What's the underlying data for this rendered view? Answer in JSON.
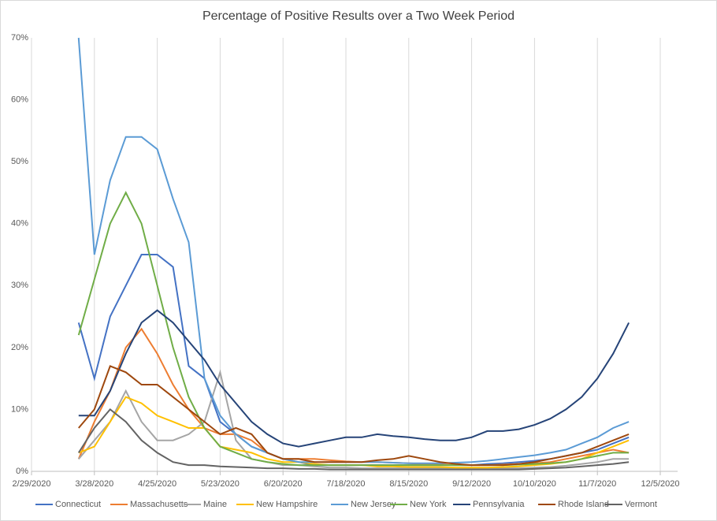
{
  "chart_data": {
    "type": "line",
    "title": "Percentage of Positive Results over a Two Week Period",
    "x": [
      "3/21/2020",
      "3/28/2020",
      "4/4/2020",
      "4/11/2020",
      "4/18/2020",
      "4/25/2020",
      "5/2/2020",
      "5/9/2020",
      "5/16/2020",
      "5/23/2020",
      "5/30/2020",
      "6/6/2020",
      "6/13/2020",
      "6/20/2020",
      "6/27/2020",
      "7/4/2020",
      "7/11/2020",
      "7/18/2020",
      "7/25/2020",
      "8/1/2020",
      "8/8/2020",
      "8/15/2020",
      "8/22/2020",
      "8/29/2020",
      "9/5/2020",
      "9/12/2020",
      "9/19/2020",
      "9/26/2020",
      "10/3/2020",
      "10/10/2020",
      "10/17/2020",
      "10/24/2020",
      "10/31/2020",
      "11/7/2020",
      "11/14/2020",
      "11/21/2020"
    ],
    "xlim": [
      "2/29/2020",
      "12/5/2020"
    ],
    "xticks": [
      "2/29/2020",
      "3/28/2020",
      "4/25/2020",
      "5/23/2020",
      "6/20/2020",
      "7/18/2020",
      "8/15/2020",
      "9/12/2020",
      "10/10/2020",
      "11/7/2020",
      "12/5/2020"
    ],
    "ylim": [
      0,
      70
    ],
    "yticks": [
      {
        "value": 0,
        "label": "0%"
      },
      {
        "value": 10,
        "label": "10%"
      },
      {
        "value": 20,
        "label": "20%"
      },
      {
        "value": 30,
        "label": "30%"
      },
      {
        "value": 40,
        "label": "40%"
      },
      {
        "value": 50,
        "label": "50%"
      },
      {
        "value": 60,
        "label": "60%"
      },
      {
        "value": 70,
        "label": "70%"
      }
    ],
    "xgrid": true,
    "legend": "bottom",
    "series": [
      {
        "name": "Connecticut",
        "color": "#4472c4",
        "values": [
          24,
          15,
          25,
          30,
          35,
          35,
          33,
          17,
          15,
          8,
          6,
          4,
          3,
          2,
          1.5,
          1,
          1,
          1,
          1,
          1,
          1,
          1,
          1,
          1,
          1,
          1,
          1.2,
          1.3,
          1.5,
          1.7,
          2,
          2.5,
          3,
          3.5,
          4.5,
          5.5
        ]
      },
      {
        "name": "Massachusetts",
        "color": "#ed7d31",
        "values": [
          2,
          8,
          13,
          20,
          23,
          19,
          14,
          10,
          7,
          6,
          6,
          5,
          3,
          2,
          2,
          2,
          1.8,
          1.6,
          1.5,
          1.5,
          1.4,
          1.3,
          1.2,
          1.1,
          1,
          1,
          1,
          1.1,
          1.2,
          1.3,
          1.5,
          2,
          2.5,
          3,
          3.5,
          3
        ]
      },
      {
        "name": "Maine",
        "color": "#a5a5a5",
        "values": [
          2,
          5,
          8,
          13,
          8,
          5,
          5,
          6,
          8,
          16,
          5,
          2,
          1.5,
          1,
          1,
          0.8,
          0.6,
          0.6,
          0.5,
          0.5,
          0.5,
          0.5,
          0.5,
          0.5,
          0.5,
          0.5,
          0.5,
          0.5,
          0.5,
          0.6,
          0.7,
          0.9,
          1.2,
          1.5,
          2,
          2
        ]
      },
      {
        "name": "New Hampshire",
        "color": "#ffc000",
        "values": [
          3,
          4,
          8,
          12,
          11,
          9,
          8,
          7,
          7,
          4,
          3.5,
          3,
          2,
          1.5,
          1.5,
          1.2,
          1,
          1,
          1,
          0.8,
          0.8,
          0.7,
          0.7,
          0.7,
          0.6,
          0.6,
          0.6,
          0.7,
          0.8,
          1,
          1.2,
          1.5,
          2,
          3,
          4,
          5
        ]
      },
      {
        "name": "New Jersey",
        "color": "#5b9bd5",
        "values": [
          70,
          35,
          47,
          54,
          54,
          52,
          44,
          37,
          15,
          9,
          6,
          4,
          3,
          2,
          1.5,
          1.5,
          1.5,
          1.5,
          1.5,
          1.5,
          1.4,
          1.3,
          1.3,
          1.3,
          1.4,
          1.5,
          1.7,
          2,
          2.3,
          2.6,
          3,
          3.5,
          4.5,
          5.5,
          7,
          8
        ]
      },
      {
        "name": "New York",
        "color": "#70ad47",
        "values": [
          22,
          31,
          40,
          45,
          40,
          30,
          20,
          12,
          7,
          4,
          3,
          2,
          1.5,
          1.2,
          1,
          1,
          1,
          1,
          1,
          1,
          1,
          1,
          1,
          1,
          1,
          1,
          1,
          1,
          1.1,
          1.2,
          1.3,
          1.5,
          2,
          2.5,
          3,
          3
        ]
      },
      {
        "name": "Pennsylvania",
        "color": "#264478",
        "values": [
          9,
          9,
          13,
          19,
          24,
          26,
          24,
          21,
          18,
          14,
          11,
          8,
          6,
          4.5,
          4,
          4.5,
          5,
          5.5,
          5.5,
          6,
          5.7,
          5.5,
          5.2,
          5,
          5,
          5.5,
          6.5,
          6.5,
          6.8,
          7.5,
          8.5,
          10,
          12,
          15,
          19,
          24
        ]
      },
      {
        "name": "Rhode Island",
        "color": "#9e480e",
        "values": [
          7,
          10,
          17,
          16,
          14,
          14,
          12,
          10,
          8,
          6,
          7,
          6,
          3,
          2,
          2,
          1.5,
          1.5,
          1.5,
          1.5,
          1.8,
          2,
          2.5,
          2,
          1.5,
          1.2,
          1,
          1,
          1,
          1.2,
          1.5,
          2,
          2.5,
          3,
          4,
          5,
          6
        ]
      },
      {
        "name": "Vermont",
        "color": "#636363",
        "values": [
          3,
          7,
          10,
          8,
          5,
          3,
          1.5,
          1,
          1,
          0.8,
          0.7,
          0.6,
          0.5,
          0.5,
          0.4,
          0.4,
          0.3,
          0.3,
          0.3,
          0.3,
          0.3,
          0.3,
          0.3,
          0.3,
          0.3,
          0.3,
          0.3,
          0.3,
          0.3,
          0.4,
          0.5,
          0.6,
          0.8,
          1,
          1.2,
          1.5
        ]
      }
    ]
  }
}
